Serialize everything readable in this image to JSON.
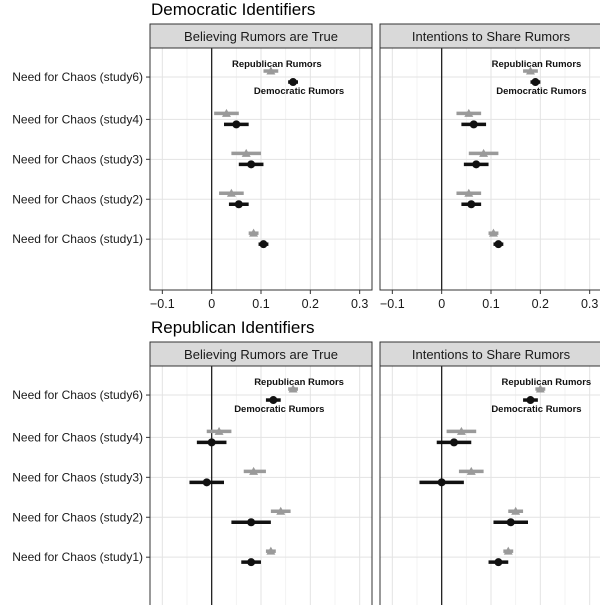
{
  "chart_data": {
    "type": "coefficient-plot",
    "groups": [
      {
        "title": "Democratic Identifiers",
        "rows": [
          "Need for Chaos (study6)",
          "Need for Chaos (study4)",
          "Need for Chaos (study3)",
          "Need for Chaos (study2)",
          "Need for Chaos (study1)"
        ],
        "panels": [
          {
            "title": "Believing Rumors are True",
            "series": [
              {
                "name": "Republican Rumors",
                "color": "#9a9a9a",
                "marker": "triangle",
                "points": [
                  {
                    "est": 0.12,
                    "lo": 0.105,
                    "hi": 0.135
                  },
                  {
                    "est": 0.03,
                    "lo": 0.005,
                    "hi": 0.055
                  },
                  {
                    "est": 0.07,
                    "lo": 0.04,
                    "hi": 0.1
                  },
                  {
                    "est": 0.04,
                    "lo": 0.015,
                    "hi": 0.065
                  },
                  {
                    "est": 0.085,
                    "lo": 0.075,
                    "hi": 0.095
                  }
                ]
              },
              {
                "name": "Democratic Rumors",
                "color": "#111111",
                "marker": "circle",
                "points": [
                  {
                    "est": 0.165,
                    "lo": 0.155,
                    "hi": 0.175
                  },
                  {
                    "est": 0.05,
                    "lo": 0.025,
                    "hi": 0.075
                  },
                  {
                    "est": 0.08,
                    "lo": 0.055,
                    "hi": 0.105
                  },
                  {
                    "est": 0.055,
                    "lo": 0.035,
                    "hi": 0.075
                  },
                  {
                    "est": 0.105,
                    "lo": 0.095,
                    "hi": 0.115
                  }
                ]
              }
            ]
          },
          {
            "title": "Intentions to Share Rumors",
            "series": [
              {
                "name": "Republican Rumors",
                "color": "#9a9a9a",
                "marker": "triangle",
                "points": [
                  {
                    "est": 0.18,
                    "lo": 0.165,
                    "hi": 0.195
                  },
                  {
                    "est": 0.055,
                    "lo": 0.03,
                    "hi": 0.08
                  },
                  {
                    "est": 0.085,
                    "lo": 0.055,
                    "hi": 0.115
                  },
                  {
                    "est": 0.055,
                    "lo": 0.03,
                    "hi": 0.08
                  },
                  {
                    "est": 0.105,
                    "lo": 0.095,
                    "hi": 0.115
                  }
                ]
              },
              {
                "name": "Democratic Rumors",
                "color": "#111111",
                "marker": "circle",
                "points": [
                  {
                    "est": 0.19,
                    "lo": 0.18,
                    "hi": 0.2
                  },
                  {
                    "est": 0.065,
                    "lo": 0.04,
                    "hi": 0.09
                  },
                  {
                    "est": 0.07,
                    "lo": 0.045,
                    "hi": 0.095
                  },
                  {
                    "est": 0.06,
                    "lo": 0.04,
                    "hi": 0.08
                  },
                  {
                    "est": 0.115,
                    "lo": 0.105,
                    "hi": 0.125
                  }
                ]
              }
            ]
          }
        ]
      },
      {
        "title": "Republican Identifiers",
        "rows": [
          "Need for Chaos (study6)",
          "Need for Chaos (study4)",
          "Need for Chaos (study3)",
          "Need for Chaos (study2)",
          "Need for Chaos (study1)"
        ],
        "panels": [
          {
            "title": "Believing Rumors are True",
            "series": [
              {
                "name": "Republican Rumors",
                "color": "#9a9a9a",
                "marker": "triangle",
                "points": [
                  {
                    "est": 0.165,
                    "lo": 0.155,
                    "hi": 0.175
                  },
                  {
                    "est": 0.015,
                    "lo": -0.01,
                    "hi": 0.04
                  },
                  {
                    "est": 0.085,
                    "lo": 0.065,
                    "hi": 0.11
                  },
                  {
                    "est": 0.14,
                    "lo": 0.12,
                    "hi": 0.16
                  },
                  {
                    "est": 0.12,
                    "lo": 0.11,
                    "hi": 0.13
                  }
                ]
              },
              {
                "name": "Democratic Rumors",
                "color": "#111111",
                "marker": "circle",
                "points": [
                  {
                    "est": 0.125,
                    "lo": 0.11,
                    "hi": 0.14
                  },
                  {
                    "est": 0.0,
                    "lo": -0.03,
                    "hi": 0.03
                  },
                  {
                    "est": -0.01,
                    "lo": -0.045,
                    "hi": 0.025
                  },
                  {
                    "est": 0.08,
                    "lo": 0.04,
                    "hi": 0.12
                  },
                  {
                    "est": 0.08,
                    "lo": 0.06,
                    "hi": 0.1
                  }
                ]
              }
            ]
          },
          {
            "title": "Intentions to Share Rumors",
            "series": [
              {
                "name": "Republican Rumors",
                "color": "#9a9a9a",
                "marker": "triangle",
                "points": [
                  {
                    "est": 0.2,
                    "lo": 0.19,
                    "hi": 0.21
                  },
                  {
                    "est": 0.04,
                    "lo": 0.01,
                    "hi": 0.07
                  },
                  {
                    "est": 0.06,
                    "lo": 0.035,
                    "hi": 0.085
                  },
                  {
                    "est": 0.15,
                    "lo": 0.135,
                    "hi": 0.165
                  },
                  {
                    "est": 0.135,
                    "lo": 0.125,
                    "hi": 0.145
                  }
                ]
              },
              {
                "name": "Democratic Rumors",
                "color": "#111111",
                "marker": "circle",
                "points": [
                  {
                    "est": 0.18,
                    "lo": 0.165,
                    "hi": 0.195
                  },
                  {
                    "est": 0.025,
                    "lo": -0.01,
                    "hi": 0.06
                  },
                  {
                    "est": 0.0,
                    "lo": -0.045,
                    "hi": 0.045
                  },
                  {
                    "est": 0.14,
                    "lo": 0.105,
                    "hi": 0.175
                  },
                  {
                    "est": 0.115,
                    "lo": 0.095,
                    "hi": 0.135
                  }
                ]
              }
            ]
          }
        ]
      }
    ],
    "xlim": [
      -0.125,
      0.325
    ],
    "xticks": [
      -0.1,
      0,
      0.1,
      0.2,
      0.3
    ],
    "xtick_labels": [
      "−0.1",
      "0",
      "0.1",
      "0.2",
      "0.3"
    ],
    "reference_line": 0,
    "grid": true,
    "annotations": {
      "republican": "Republican Rumors",
      "democratic": "Democratic Rumors"
    }
  }
}
